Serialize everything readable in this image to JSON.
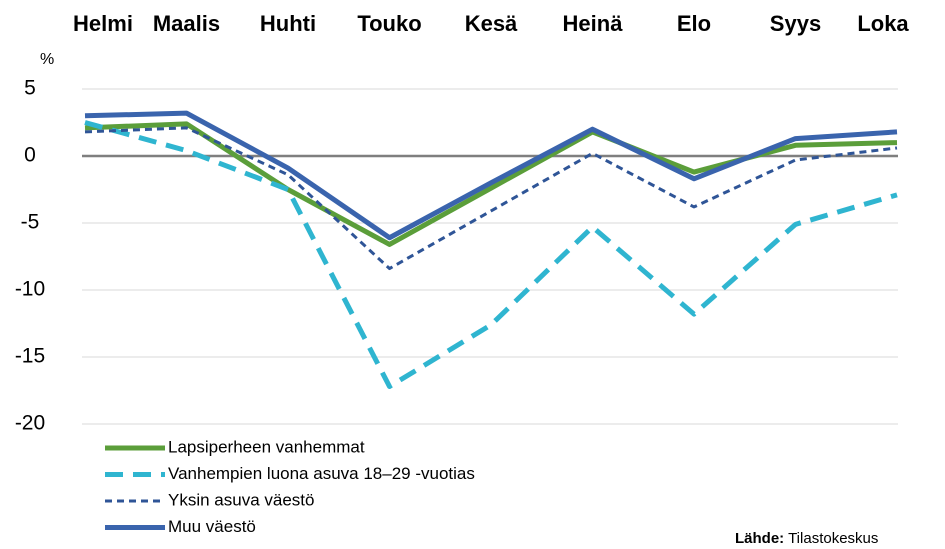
{
  "chart_data": {
    "type": "line",
    "categories": [
      "Helmi",
      "Maalis",
      "Huhti",
      "Touko",
      "Kesä",
      "Heinä",
      "Elo",
      "Syys",
      "Loka"
    ],
    "y_label": "%",
    "series": [
      {
        "name": "Lapsiperheen vanhemmat",
        "color": "#5b9e3a",
        "dash": "solid",
        "values": [
          2.1,
          2.4,
          -2.5,
          -6.6,
          -2.4,
          1.8,
          -1.2,
          0.8,
          1.0
        ]
      },
      {
        "name": "Vanhempien luona asuva 18–29 -vuotias",
        "color": "#2fb5d0",
        "dash": "long",
        "values": [
          2.5,
          0.4,
          -2.5,
          -17.2,
          -12.6,
          -5.3,
          -11.8,
          -5.1,
          -2.9
        ]
      },
      {
        "name": "Yksin asuva väestö",
        "color": "#2f5597",
        "dash": "short",
        "values": [
          1.8,
          2.1,
          -1.4,
          -8.4,
          -4.1,
          0.2,
          -3.8,
          -0.3,
          0.6
        ]
      },
      {
        "name": "Muu väestö",
        "color": "#3a64ad",
        "dash": "solid",
        "values": [
          3.0,
          3.2,
          -0.9,
          -6.1,
          -2.0,
          2.0,
          -1.7,
          1.3,
          1.8
        ]
      }
    ],
    "ylim": [
      -20,
      5
    ],
    "yticks": [
      5,
      0,
      -5,
      -10,
      -15,
      -20
    ],
    "grid": true,
    "source_label": "Lähde:",
    "source": "Tilastokeskus"
  }
}
